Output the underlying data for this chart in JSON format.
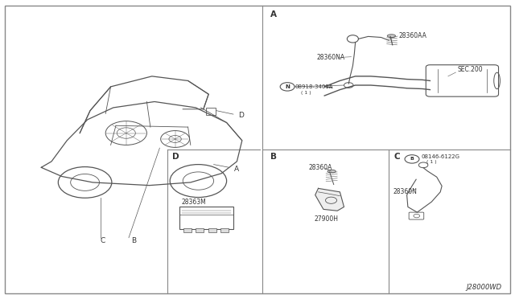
{
  "bg_color": "#ffffff",
  "line_color": "#555555",
  "text_color": "#333333",
  "diagram_id": "J28000WD",
  "border_color": "#aaaaaa",
  "section_A_label": "A",
  "section_B_label": "B",
  "section_C_label": "C",
  "section_D_label": "D",
  "part_28360AA": "28360AA",
  "part_28360NA": "28360NA",
  "part_08918": "08918-3401A",
  "part_08918_qty": "( 1 )",
  "part_SEC200": "SEC.200",
  "part_28363M": "28363M",
  "part_28360A": "28360A",
  "part_27900H": "27900H",
  "part_08146": "08146-6122G",
  "part_08146_qty": "( 1 )",
  "part_28360N": "28360N",
  "label_A_car": "A",
  "label_B_car": "B",
  "label_C_car": "C",
  "label_D_car": "D"
}
